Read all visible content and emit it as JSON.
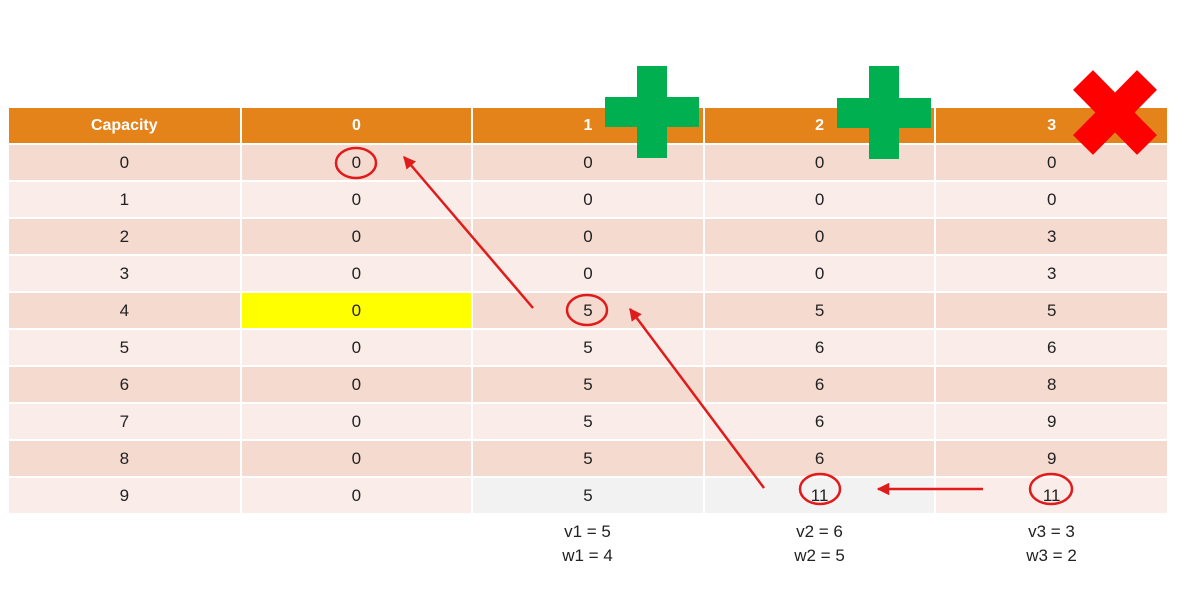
{
  "table": {
    "headers": [
      "Capacity",
      "0",
      "1",
      "2",
      "3"
    ],
    "rows": [
      [
        "0",
        "0",
        "0",
        "0",
        "0"
      ],
      [
        "1",
        "0",
        "0",
        "0",
        "0"
      ],
      [
        "2",
        "0",
        "0",
        "0",
        "3"
      ],
      [
        "3",
        "0",
        "0",
        "0",
        "3"
      ],
      [
        "4",
        "0",
        "5",
        "5",
        "5"
      ],
      [
        "5",
        "0",
        "5",
        "6",
        "6"
      ],
      [
        "6",
        "0",
        "5",
        "6",
        "8"
      ],
      [
        "7",
        "0",
        "5",
        "6",
        "9"
      ],
      [
        "8",
        "0",
        "5",
        "6",
        "9"
      ],
      [
        "9",
        "0",
        "5",
        "11",
        "11"
      ]
    ]
  },
  "items": [
    {
      "value": "v1 = 5",
      "weight": "w1 = 4"
    },
    {
      "value": "v2 = 6",
      "weight": "w2 = 5"
    },
    {
      "value": "v3 = 3",
      "weight": "w3 = 2"
    }
  ],
  "colors": {
    "header": "#e4831a",
    "row_dark": "#f5dad0",
    "row_light": "#faece8",
    "highlight": "#ffff00",
    "arrow": "#e01b1b",
    "plus": "#00b050",
    "cross": "#ff0000"
  },
  "icons": {
    "item1": "plus-icon",
    "item2": "plus-icon",
    "item3": "cross-icon"
  }
}
